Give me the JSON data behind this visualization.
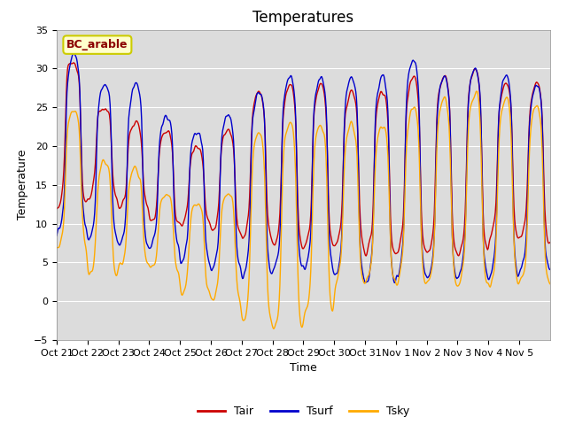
{
  "title": "Temperatures",
  "xlabel": "Time",
  "ylabel": "Temperature",
  "ylim": [
    -5,
    35
  ],
  "yticks": [
    -5,
    0,
    5,
    10,
    15,
    20,
    25,
    30,
    35
  ],
  "n_days": 16,
  "bg_color": "#dcdcdc",
  "line_color_tair": "#cc0000",
  "line_color_tsurf": "#0000cc",
  "line_color_tsky": "#ffaa00",
  "line_width": 1.0,
  "legend_labels": [
    "Tair",
    "Tsurf",
    "Tsky"
  ],
  "annotation_text": "BC_arable",
  "xtick_labels": [
    "Oct 21",
    "Oct 22",
    "Oct 23",
    "Oct 24",
    "Oct 25",
    "Oct 26",
    "Oct 27",
    "Oct 28",
    "Oct 29",
    "Oct 30",
    "Oct 31",
    "Nov 1",
    "Nov 2",
    "Nov 3",
    "Nov 4",
    "Nov 5"
  ],
  "title_fontsize": 12,
  "axis_fontsize": 9,
  "tick_fontsize": 8
}
